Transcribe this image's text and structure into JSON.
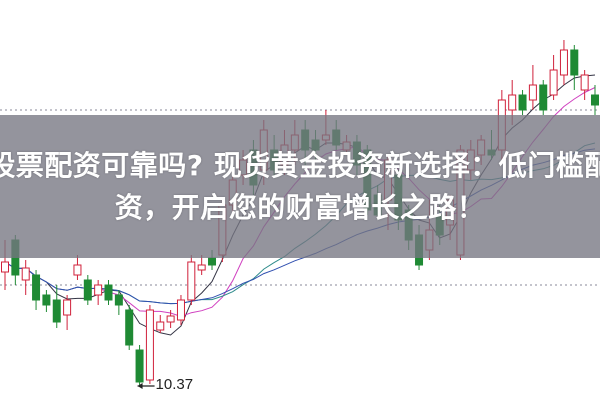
{
  "headline": {
    "title_lines": [
      "股票配资可靠吗? 现货黄金投资新选择：低门槛配",
      "资，开启您的财富增长之路！"
    ]
  },
  "chart_data": {
    "type": "candlestick",
    "title": "",
    "xlabel": "",
    "ylabel": "",
    "ylim": [
      10.22,
      14.22
    ],
    "grid": "dotted horizontal lines",
    "colors": {
      "up": "#d0203a",
      "down": "#1f8a34",
      "ma_lines": [
        "#333344",
        "#d040c0",
        "#2e8b8b",
        "#3050b0"
      ]
    },
    "moving_averages": [
      5,
      10,
      20,
      30
    ],
    "low_annotation": "10.37",
    "ohlc": [
      [
        11.5,
        11.82,
        11.32,
        11.6
      ],
      [
        11.82,
        11.87,
        11.37,
        11.47
      ],
      [
        11.42,
        11.62,
        11.27,
        11.54
      ],
      [
        11.47,
        11.52,
        11.12,
        11.22
      ],
      [
        11.27,
        11.32,
        11.1,
        11.17
      ],
      [
        11.22,
        11.37,
        10.94,
        11.0
      ],
      [
        11.07,
        11.27,
        10.92,
        11.22
      ],
      [
        11.47,
        11.67,
        11.42,
        11.57
      ],
      [
        11.42,
        11.47,
        11.17,
        11.22
      ],
      [
        11.27,
        11.42,
        11.17,
        11.37
      ],
      [
        11.37,
        11.42,
        11.17,
        11.22
      ],
      [
        11.27,
        11.32,
        11.07,
        11.17
      ],
      [
        11.12,
        11.17,
        10.72,
        10.77
      ],
      [
        10.72,
        10.77,
        10.37,
        10.4
      ],
      [
        10.42,
        11.17,
        10.38,
        11.12
      ],
      [
        10.92,
        11.07,
        10.89,
        11.0
      ],
      [
        11.0,
        11.12,
        10.94,
        11.06
      ],
      [
        11.02,
        11.27,
        10.97,
        11.22
      ],
      [
        11.22,
        11.67,
        11.17,
        11.6
      ],
      [
        11.52,
        11.67,
        11.47,
        11.57
      ],
      [
        11.64,
        11.72,
        11.52,
        11.57
      ],
      [
        11.67,
        12.22,
        11.6,
        12.17
      ],
      [
        12.17,
        12.52,
        12.1,
        12.42
      ],
      [
        12.47,
        12.72,
        12.37,
        12.62
      ],
      [
        12.72,
        12.82,
        12.27,
        12.37
      ],
      [
        12.52,
        13.02,
        12.37,
        12.92
      ],
      [
        12.72,
        12.87,
        12.44,
        12.52
      ],
      [
        12.57,
        12.92,
        12.47,
        12.77
      ],
      [
        12.72,
        13.02,
        12.57,
        12.87
      ],
      [
        12.92,
        13.02,
        12.57,
        12.72
      ],
      [
        12.82,
        12.92,
        12.62,
        12.72
      ],
      [
        12.82,
        13.12,
        12.77,
        12.87
      ],
      [
        12.92,
        13.02,
        12.72,
        12.77
      ],
      [
        12.72,
        12.87,
        12.67,
        12.8
      ],
      [
        12.8,
        12.87,
        12.47,
        12.57
      ],
      [
        12.72,
        12.77,
        12.07,
        12.12
      ],
      [
        12.27,
        12.37,
        12.02,
        12.07
      ],
      [
        12.22,
        12.67,
        11.92,
        12.62
      ],
      [
        12.47,
        12.52,
        11.92,
        12.02
      ],
      [
        12.12,
        12.17,
        11.72,
        11.82
      ],
      [
        11.87,
        11.97,
        11.52,
        11.57
      ],
      [
        11.72,
        12.22,
        11.62,
        11.92
      ],
      [
        12.07,
        12.17,
        11.77,
        11.87
      ],
      [
        11.97,
        12.27,
        11.82,
        12.22
      ],
      [
        11.67,
        12.77,
        11.62,
        12.72
      ],
      [
        12.52,
        12.82,
        12.42,
        12.72
      ],
      [
        12.67,
        12.87,
        12.57,
        12.82
      ],
      [
        12.72,
        12.92,
        12.62,
        12.67
      ],
      [
        12.72,
        13.32,
        12.62,
        13.22
      ],
      [
        13.12,
        13.42,
        12.97,
        13.27
      ],
      [
        13.27,
        13.32,
        13.07,
        13.12
      ],
      [
        13.22,
        13.57,
        13.12,
        13.37
      ],
      [
        13.37,
        13.42,
        13.07,
        13.12
      ],
      [
        13.27,
        13.67,
        13.22,
        13.52
      ],
      [
        13.47,
        13.82,
        13.37,
        13.72
      ],
      [
        13.72,
        13.77,
        13.32,
        13.47
      ],
      [
        13.32,
        13.52,
        13.22,
        13.47
      ],
      [
        13.27,
        13.37,
        13.07,
        13.17
      ]
    ]
  }
}
